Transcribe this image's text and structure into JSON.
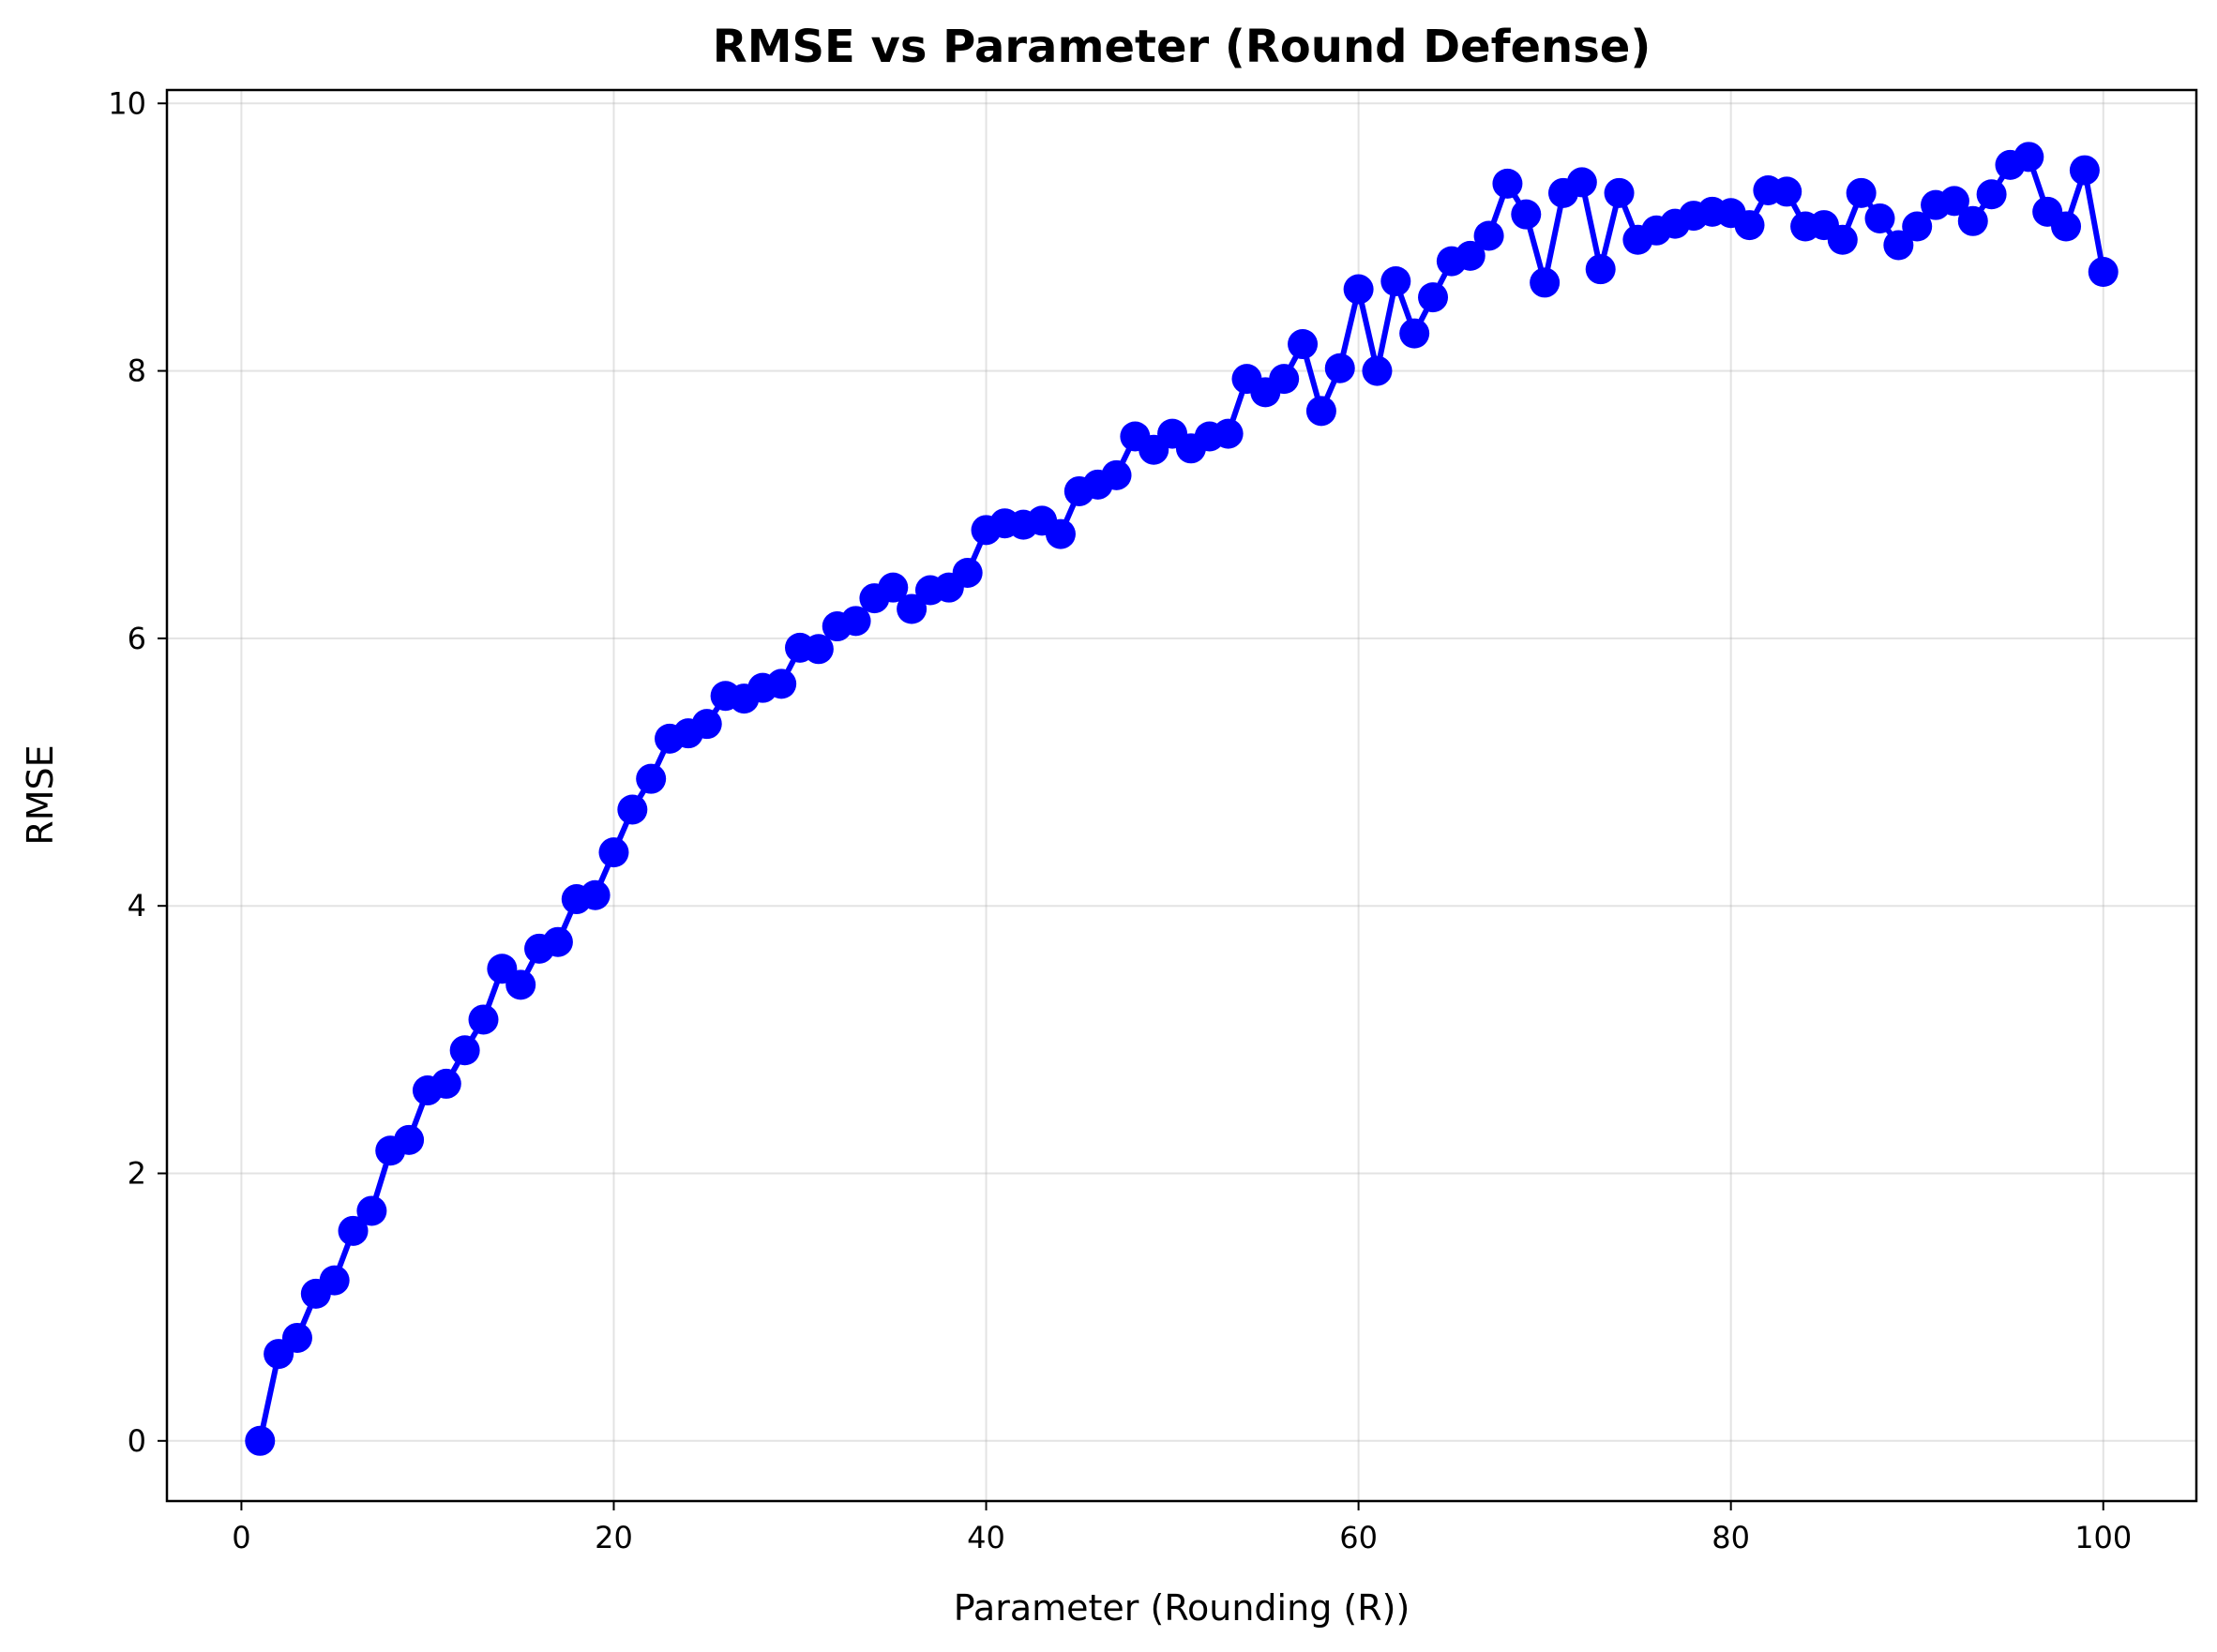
{
  "chart_data": {
    "type": "line",
    "title": "RMSE vs Parameter (Round Defense)",
    "xlabel": "Parameter (Rounding (R))",
    "ylabel": "RMSE",
    "xlim": [
      -4,
      105
    ],
    "ylim": [
      -0.45,
      10.1
    ],
    "xticks": [
      0,
      20,
      40,
      60,
      80,
      100
    ],
    "yticks": [
      0,
      2,
      4,
      6,
      8,
      10
    ],
    "grid": true,
    "series": [
      {
        "color": "#0000ff",
        "marker": "circle",
        "x": [
          1,
          2,
          3,
          4,
          5,
          6,
          7,
          8,
          9,
          10,
          11,
          12,
          13,
          14,
          15,
          16,
          17,
          18,
          19,
          20,
          21,
          22,
          23,
          24,
          25,
          26,
          27,
          28,
          29,
          30,
          31,
          32,
          33,
          34,
          35,
          36,
          37,
          38,
          39,
          40,
          41,
          42,
          43,
          44,
          45,
          46,
          47,
          48,
          49,
          50,
          51,
          52,
          53,
          54,
          55,
          56,
          57,
          58,
          59,
          60,
          61,
          62,
          63,
          64,
          65,
          66,
          67,
          68,
          69,
          70,
          71,
          72,
          73,
          74,
          75,
          76,
          77,
          78,
          79,
          80,
          81,
          82,
          83,
          84,
          85,
          86,
          87,
          88,
          89,
          90,
          91,
          92,
          93,
          94,
          95,
          96,
          97,
          98,
          99,
          100
        ],
        "y": [
          0.0,
          0.65,
          0.77,
          1.1,
          1.2,
          1.57,
          1.72,
          2.17,
          2.25,
          2.62,
          2.67,
          2.92,
          3.15,
          3.53,
          3.41,
          3.68,
          3.73,
          4.05,
          4.08,
          4.4,
          4.72,
          4.95,
          5.25,
          5.29,
          5.36,
          5.57,
          5.55,
          5.63,
          5.66,
          5.93,
          5.92,
          6.09,
          6.13,
          6.3,
          6.38,
          6.22,
          6.36,
          6.38,
          6.49,
          6.81,
          6.86,
          6.85,
          6.88,
          6.78,
          7.1,
          7.15,
          7.22,
          7.51,
          7.41,
          7.53,
          7.42,
          7.51,
          7.53,
          7.94,
          7.84,
          7.94,
          8.2,
          7.7,
          8.02,
          8.61,
          8.0,
          8.67,
          8.28,
          8.55,
          8.82,
          8.86,
          9.01,
          9.4,
          9.17,
          8.66,
          9.33,
          9.41,
          8.76,
          9.33,
          8.98,
          9.05,
          9.1,
          9.16,
          9.19,
          9.18,
          9.09,
          9.35,
          9.34,
          9.08,
          9.09,
          8.98,
          9.33,
          9.14,
          8.94,
          9.08,
          9.24,
          9.27,
          9.12,
          9.32,
          9.54,
          9.6,
          9.19,
          9.08,
          9.5,
          8.74
        ]
      }
    ]
  }
}
